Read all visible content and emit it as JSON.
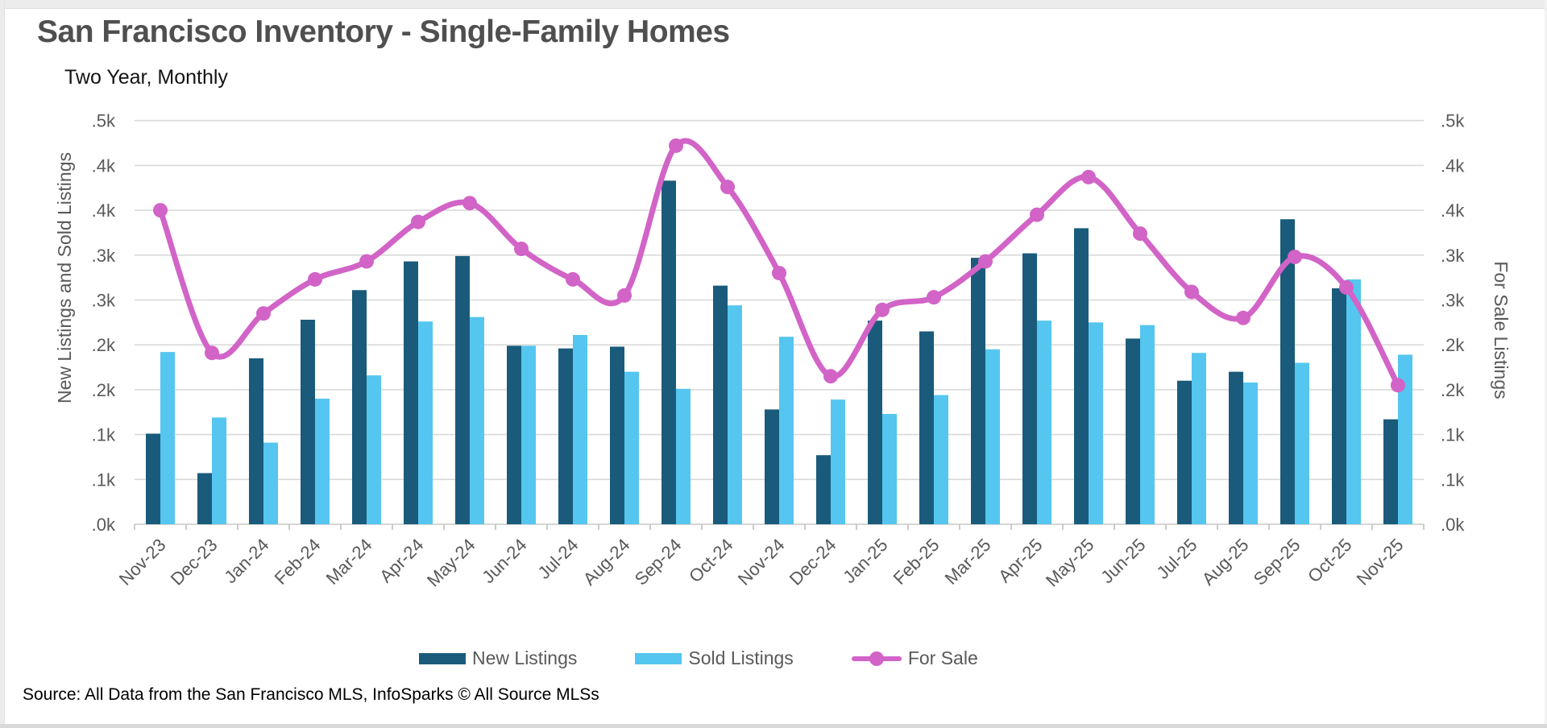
{
  "page": {
    "title": "San Francisco Inventory - Single-Family Homes",
    "subtitle": "Two Year, Monthly",
    "source": "Source: All Data from the San Francisco MLS, InfoSparks © All Source MLSs"
  },
  "colors": {
    "new_listings": "#1a5b7b",
    "sold_listings": "#55c6ef",
    "for_sale": "#d263c7",
    "axis_text": "#595959",
    "gridline": "#d9d9d9",
    "tick_mark": "#c0c0c0",
    "title_text": "#4f4f4f"
  },
  "chart_data": {
    "type": "bar+line",
    "title": "San Francisco Inventory - Single-Family Homes",
    "subtitle": "Two Year, Monthly",
    "grid": true,
    "legend_position": "bottom",
    "categories": [
      "Nov-23",
      "Dec-23",
      "Jan-24",
      "Feb-24",
      "Mar-24",
      "Apr-24",
      "May-24",
      "Jun-24",
      "Jul-24",
      "Aug-24",
      "Sep-24",
      "Oct-24",
      "Nov-24",
      "Dec-24",
      "Jan-25",
      "Feb-25",
      "Mar-25",
      "Apr-25",
      "May-25",
      "Jun-25",
      "Jul-25",
      "Aug-25",
      "Sep-25",
      "Oct-25",
      "Nov-25"
    ],
    "series": [
      {
        "name": "New Listings",
        "type": "bar",
        "axis": "left",
        "color": "#1a5b7b",
        "values": [
          101,
          57,
          185,
          228,
          261,
          293,
          299,
          199,
          196,
          198,
          383,
          266,
          128,
          77,
          227,
          215,
          297,
          302,
          330,
          207,
          160,
          170,
          340,
          263,
          117
        ]
      },
      {
        "name": "Sold Listings",
        "type": "bar",
        "axis": "left",
        "color": "#55c6ef",
        "values": [
          192,
          119,
          91,
          140,
          166,
          226,
          231,
          199,
          211,
          170,
          151,
          244,
          209,
          139,
          123,
          144,
          195,
          227,
          225,
          222,
          191,
          158,
          180,
          273,
          189
        ]
      },
      {
        "name": "For Sale",
        "type": "line",
        "axis": "right",
        "color": "#d263c7",
        "values": [
          350,
          191,
          235,
          273,
          293,
          337,
          358,
          307,
          273,
          255,
          422,
          376,
          280,
          165,
          239,
          253,
          293,
          345,
          387,
          324,
          259,
          230,
          298,
          264,
          155
        ]
      }
    ],
    "y_left": {
      "title": "New Listings and Sold Listings",
      "range": [
        0,
        450
      ],
      "ticks": [
        0,
        50,
        100,
        150,
        200,
        250,
        300,
        350,
        400,
        450
      ],
      "tick_labels": [
        ".0k",
        ".1k",
        ".1k",
        ".2k",
        ".2k",
        ".3k",
        ".3k",
        ".4k",
        ".4k",
        ".5k"
      ]
    },
    "y_right": {
      "title": "For Sale Listings",
      "range": [
        0,
        450
      ],
      "ticks": [
        0,
        50,
        100,
        150,
        200,
        250,
        300,
        350,
        400,
        450
      ],
      "tick_labels": [
        ".0k",
        ".1k",
        ".1k",
        ".2k",
        ".2k",
        ".3k",
        ".3k",
        ".4k",
        ".4k",
        ".5k"
      ]
    }
  }
}
